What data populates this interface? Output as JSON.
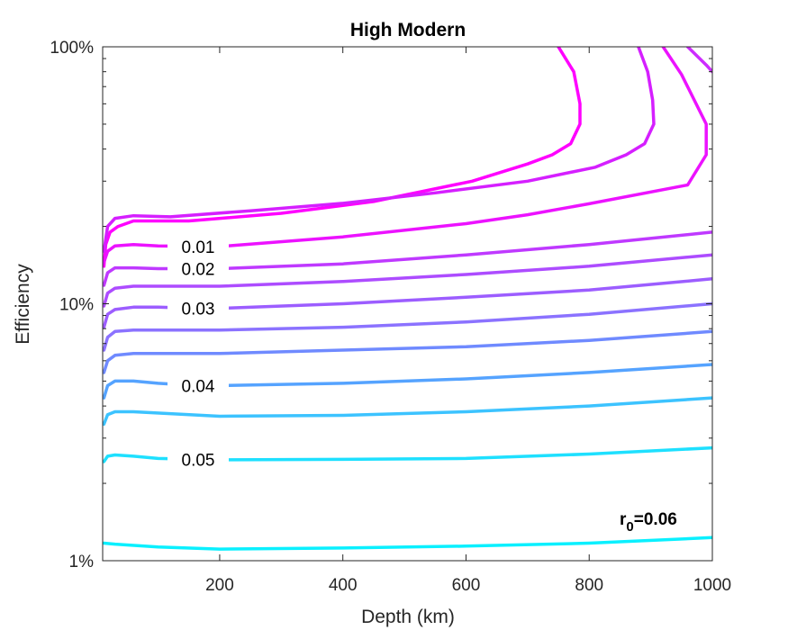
{
  "chart_data": {
    "type": "line",
    "title": "High Modern",
    "xlabel": "Depth (km)",
    "ylabel": "Efficiency",
    "xlim": [
      10,
      1000
    ],
    "ylim": [
      0.01,
      1.0
    ],
    "yscale": "log",
    "grid": false,
    "x_ticks": [
      200,
      400,
      600,
      800,
      1000
    ],
    "x_tick_labels": [
      "200",
      "400",
      "600",
      "800",
      "1000"
    ],
    "y_ticks": [
      0.01,
      0.1,
      1.0
    ],
    "y_tick_labels": [
      "1%",
      "10%",
      "100%"
    ],
    "annotation": {
      "base": "r",
      "sub": "0",
      "rest": "=0.06"
    },
    "series": [
      {
        "color": "#ff00ff",
        "label": "",
        "label_x": 0,
        "points": [
          [
            750,
            1.0
          ],
          [
            775,
            0.8
          ],
          [
            785,
            0.6
          ],
          [
            785,
            0.5
          ],
          [
            770,
            0.42
          ],
          [
            740,
            0.38
          ],
          [
            700,
            0.35
          ],
          [
            610,
            0.3
          ],
          [
            450,
            0.25
          ],
          [
            300,
            0.225
          ],
          [
            150,
            0.21
          ],
          [
            60,
            0.21
          ],
          [
            35,
            0.2
          ],
          [
            22,
            0.19
          ],
          [
            15,
            0.17
          ],
          [
            12,
            0.14
          ]
        ]
      },
      {
        "color": "#ec12ff",
        "label": "0.01",
        "label_x": 165,
        "points": [
          [
            12,
            0.145
          ],
          [
            18,
            0.16
          ],
          [
            30,
            0.168
          ],
          [
            60,
            0.17
          ],
          [
            100,
            0.168
          ],
          [
            165,
            0.167
          ],
          [
            200,
            0.167
          ],
          [
            400,
            0.182
          ],
          [
            600,
            0.205
          ],
          [
            700,
            0.222
          ],
          [
            800,
            0.245
          ],
          [
            960,
            0.29
          ],
          [
            990,
            0.38
          ],
          [
            990,
            0.5
          ],
          [
            950,
            0.78
          ],
          [
            920,
            1.0
          ]
        ]
      },
      {
        "color": "#d51fff",
        "label": "",
        "label_x": 0,
        "points": [
          [
            880,
            1.0
          ],
          [
            895,
            0.8
          ],
          [
            903,
            0.62
          ],
          [
            905,
            0.5
          ],
          [
            890,
            0.42
          ],
          [
            860,
            0.38
          ],
          [
            810,
            0.34
          ],
          [
            700,
            0.3
          ],
          [
            550,
            0.27
          ],
          [
            400,
            0.246
          ],
          [
            250,
            0.23
          ],
          [
            120,
            0.218
          ],
          [
            60,
            0.22
          ],
          [
            30,
            0.215
          ],
          [
            18,
            0.2
          ],
          [
            12,
            0.16
          ]
        ]
      },
      {
        "color": "#cd2cff",
        "label": "",
        "label_x": 0,
        "points": [
          [
            960,
            1.0
          ],
          [
            990,
            0.85
          ],
          [
            1000,
            0.8
          ]
        ]
      },
      {
        "color": "#bf39ff",
        "label": "0.02",
        "label_x": 165,
        "points": [
          [
            12,
            0.118
          ],
          [
            18,
            0.132
          ],
          [
            30,
            0.138
          ],
          [
            60,
            0.138
          ],
          [
            100,
            0.137
          ],
          [
            165,
            0.137
          ],
          [
            200,
            0.137
          ],
          [
            400,
            0.143
          ],
          [
            600,
            0.155
          ],
          [
            800,
            0.17
          ],
          [
            1000,
            0.19
          ]
        ]
      },
      {
        "color": "#ad4cff",
        "label": "",
        "label_x": 0,
        "points": [
          [
            12,
            0.098
          ],
          [
            18,
            0.11
          ],
          [
            30,
            0.115
          ],
          [
            60,
            0.117
          ],
          [
            200,
            0.117
          ],
          [
            400,
            0.122
          ],
          [
            600,
            0.13
          ],
          [
            800,
            0.14
          ],
          [
            1000,
            0.155
          ]
        ]
      },
      {
        "color": "#9c5dff",
        "label": "0.03",
        "label_x": 165,
        "points": [
          [
            12,
            0.081
          ],
          [
            18,
            0.091
          ],
          [
            30,
            0.095
          ],
          [
            60,
            0.097
          ],
          [
            100,
            0.097
          ],
          [
            165,
            0.096
          ],
          [
            200,
            0.096
          ],
          [
            400,
            0.1
          ],
          [
            600,
            0.106
          ],
          [
            800,
            0.113
          ],
          [
            1000,
            0.125
          ]
        ]
      },
      {
        "color": "#8b72ff",
        "label": "",
        "label_x": 0,
        "points": [
          [
            12,
            0.066
          ],
          [
            18,
            0.074
          ],
          [
            30,
            0.078
          ],
          [
            60,
            0.079
          ],
          [
            200,
            0.079
          ],
          [
            400,
            0.081
          ],
          [
            600,
            0.085
          ],
          [
            800,
            0.091
          ],
          [
            1000,
            0.1
          ]
        ]
      },
      {
        "color": "#6f8aff",
        "label": "",
        "label_x": 0,
        "points": [
          [
            12,
            0.054
          ],
          [
            18,
            0.06
          ],
          [
            30,
            0.063
          ],
          [
            60,
            0.064
          ],
          [
            200,
            0.064
          ],
          [
            400,
            0.066
          ],
          [
            600,
            0.068
          ],
          [
            800,
            0.072
          ],
          [
            1000,
            0.078
          ]
        ]
      },
      {
        "color": "#55a3ff",
        "label": "0.04",
        "label_x": 165,
        "points": [
          [
            12,
            0.043
          ],
          [
            18,
            0.048
          ],
          [
            30,
            0.05
          ],
          [
            60,
            0.05
          ],
          [
            100,
            0.049
          ],
          [
            165,
            0.048
          ],
          [
            200,
            0.048
          ],
          [
            400,
            0.049
          ],
          [
            600,
            0.051
          ],
          [
            800,
            0.054
          ],
          [
            1000,
            0.058
          ]
        ]
      },
      {
        "color": "#3cc3ff",
        "label": "",
        "label_x": 0,
        "points": [
          [
            12,
            0.034
          ],
          [
            18,
            0.037
          ],
          [
            30,
            0.038
          ],
          [
            60,
            0.038
          ],
          [
            200,
            0.0365
          ],
          [
            400,
            0.0368
          ],
          [
            600,
            0.038
          ],
          [
            800,
            0.04
          ],
          [
            1000,
            0.043
          ]
        ]
      },
      {
        "color": "#1ee0ff",
        "label": "0.05",
        "label_x": 165,
        "points": [
          [
            12,
            0.0243
          ],
          [
            18,
            0.0255
          ],
          [
            30,
            0.0258
          ],
          [
            60,
            0.0255
          ],
          [
            100,
            0.025
          ],
          [
            165,
            0.0248
          ],
          [
            200,
            0.0247
          ],
          [
            400,
            0.0248
          ],
          [
            600,
            0.025
          ],
          [
            800,
            0.026
          ],
          [
            1000,
            0.0275
          ]
        ]
      },
      {
        "color": "#0af0ff",
        "label": "",
        "label_x": 0,
        "points": [
          [
            12,
            0.0117
          ],
          [
            30,
            0.0116
          ],
          [
            100,
            0.0113
          ],
          [
            200,
            0.0111
          ],
          [
            400,
            0.0112
          ],
          [
            600,
            0.0114
          ],
          [
            800,
            0.0117
          ],
          [
            1000,
            0.0123
          ]
        ]
      }
    ]
  }
}
